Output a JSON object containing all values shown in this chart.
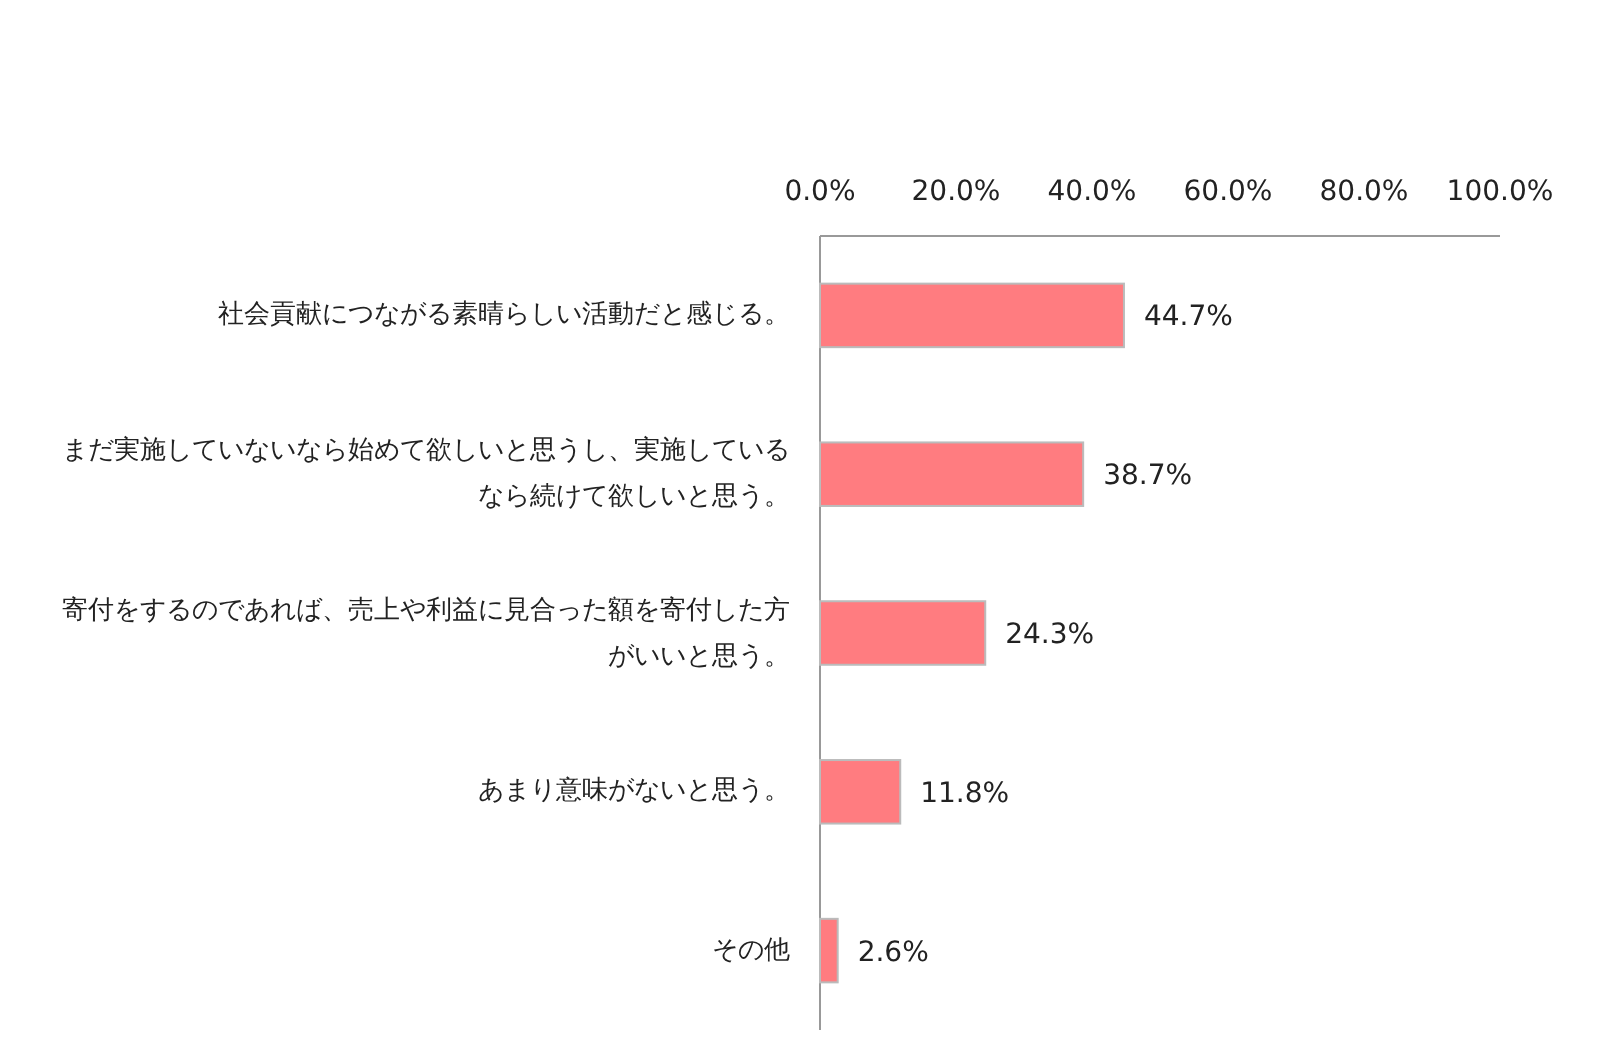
{
  "chart_data": {
    "type": "bar",
    "orientation": "horizontal",
    "categories": [
      "社会貢献につながる素晴らしい活動だと感じる。",
      "まだ実施していないなら始めて欲しいと思うし、実施しているなら続けて欲しいと思う。",
      "寄付をするのであれば、売上や利益に見合った額を寄付した方がいいと思う。",
      "あまり意味がないと思う。",
      "その他"
    ],
    "values": [
      44.7,
      38.7,
      24.3,
      11.8,
      2.6
    ],
    "value_labels": [
      "44.7%",
      "38.7%",
      "24.3%",
      "11.8%",
      "2.6%"
    ],
    "color": "#ff7c80",
    "xlim": [
      0,
      100
    ],
    "xticks": [
      {
        "value": 0,
        "label": "0.0%"
      },
      {
        "value": 20,
        "label": "20.0%"
      },
      {
        "value": 40,
        "label": "40.0%"
      },
      {
        "value": 60,
        "label": "60.0%"
      },
      {
        "value": 80,
        "label": "80.0%"
      },
      {
        "value": 100,
        "label": "100.0%"
      }
    ],
    "grid": false
  }
}
